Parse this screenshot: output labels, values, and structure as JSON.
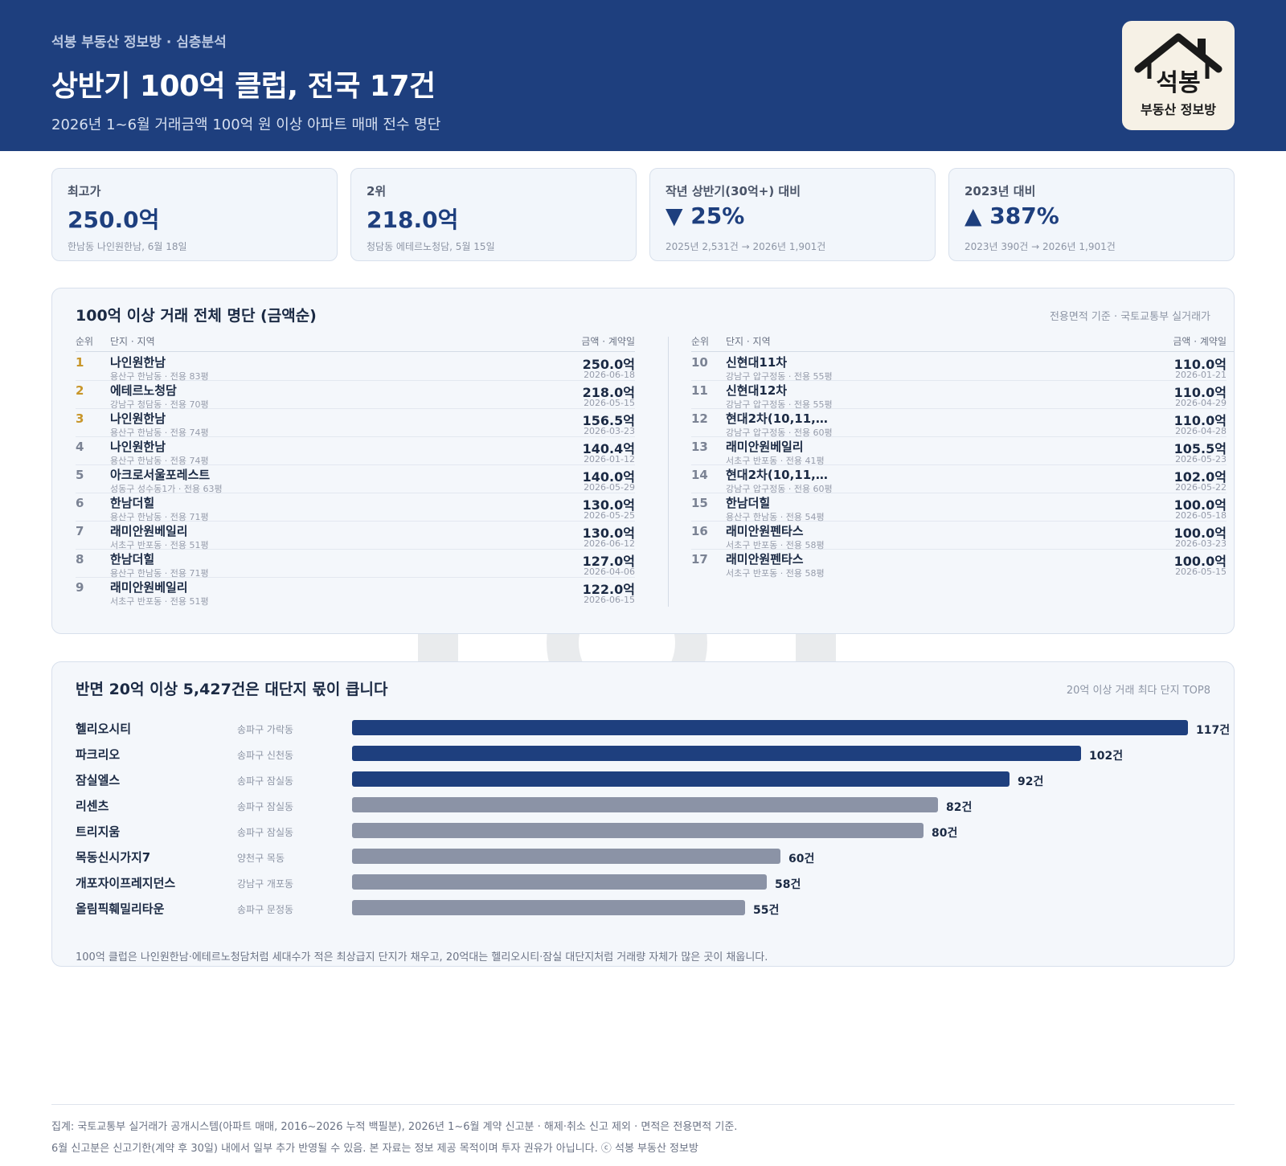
{
  "header": {
    "kicker": "석봉 부동산 정보방 · 심층분석",
    "title": "상반기 100억 클럽, 전국 17건",
    "subtitle": "2026년 1~6월 거래금액 100억 원 이상 아파트 매매 전수 명단",
    "logo_main": "석봉",
    "logo_sub": "부동산 정보방"
  },
  "kpis": [
    {
      "label": "최고가",
      "value": "250.0억",
      "note": "한남동 나인원한남, 6월 18일"
    },
    {
      "label": "2위",
      "value": "218.0억",
      "note": "청담동 에테르노청담, 5월 15일"
    },
    {
      "label": "작년 상반기(30억+) 대비",
      "value": "▼ 25%",
      "note": "2025년 2,531건 → 2026년 1,901건"
    },
    {
      "label": "2023년 대비",
      "value": "▲ 387%",
      "note": "2023년 390건 → 2026년 1,901건"
    }
  ],
  "ranking": {
    "title": "100억 이상 거래 전체 명단 (금액순)",
    "meta": "전용면적 기준 · 국토교통부 실거래가",
    "headers": {
      "rank": "순위",
      "complex": "단지 · 지역",
      "price": "금액 · 계약일"
    },
    "rows": [
      {
        "rank": "1",
        "name": "나인원한남",
        "loc": "용산구 한남동 · 전용 83평",
        "price": "250.0억",
        "date": "2026-06-18"
      },
      {
        "rank": "2",
        "name": "에테르노청담",
        "loc": "강남구 청담동 · 전용 70평",
        "price": "218.0억",
        "date": "2026-05-15"
      },
      {
        "rank": "3",
        "name": "나인원한남",
        "loc": "용산구 한남동 · 전용 74평",
        "price": "156.5억",
        "date": "2026-03-23"
      },
      {
        "rank": "4",
        "name": "나인원한남",
        "loc": "용산구 한남동 · 전용 74평",
        "price": "140.4억",
        "date": "2026-01-12"
      },
      {
        "rank": "5",
        "name": "아크로서울포레스트",
        "loc": "성동구 성수동1가 · 전용 63평",
        "price": "140.0억",
        "date": "2026-05-29"
      },
      {
        "rank": "6",
        "name": "한남더힐",
        "loc": "용산구 한남동 · 전용 71평",
        "price": "130.0억",
        "date": "2026-05-25"
      },
      {
        "rank": "7",
        "name": "래미안원베일리",
        "loc": "서초구 반포동 · 전용 51평",
        "price": "130.0억",
        "date": "2026-06-12"
      },
      {
        "rank": "8",
        "name": "한남더힐",
        "loc": "용산구 한남동 · 전용 71평",
        "price": "127.0억",
        "date": "2026-04-06"
      },
      {
        "rank": "9",
        "name": "래미안원베일리",
        "loc": "서초구 반포동 · 전용 51평",
        "price": "122.0억",
        "date": "2026-06-15"
      },
      {
        "rank": "10",
        "name": "신현대11차",
        "loc": "강남구 압구정동 · 전용 55평",
        "price": "110.0억",
        "date": "2026-01-21"
      },
      {
        "rank": "11",
        "name": "신현대12차",
        "loc": "강남구 압구정동 · 전용 55평",
        "price": "110.0억",
        "date": "2026-04-29"
      },
      {
        "rank": "12",
        "name": "현대2차(10,11,…",
        "loc": "강남구 압구정동 · 전용 60평",
        "price": "110.0억",
        "date": "2026-04-28"
      },
      {
        "rank": "13",
        "name": "래미안원베일리",
        "loc": "서초구 반포동 · 전용 41평",
        "price": "105.5억",
        "date": "2026-05-23"
      },
      {
        "rank": "14",
        "name": "현대2차(10,11,…",
        "loc": "강남구 압구정동 · 전용 60평",
        "price": "102.0억",
        "date": "2026-05-22"
      },
      {
        "rank": "15",
        "name": "한남더힐",
        "loc": "용산구 한남동 · 전용 54평",
        "price": "100.0억",
        "date": "2026-05-18"
      },
      {
        "rank": "16",
        "name": "래미안원펜타스",
        "loc": "서초구 반포동 · 전용 58평",
        "price": "100.0억",
        "date": "2026-03-23"
      },
      {
        "rank": "17",
        "name": "래미안원펜타스",
        "loc": "서초구 반포동 · 전용 58평",
        "price": "100.0억",
        "date": "2026-05-15"
      }
    ]
  },
  "chart_data": {
    "type": "bar",
    "orientation": "horizontal",
    "title": "반면 20억 이상 5,427건은 대단지 몫이 큽니다",
    "subtitle": "20억 이상 거래 최다 단지 TOP8",
    "categories": [
      "헬리오시티",
      "파크리오",
      "잠실엘스",
      "리센츠",
      "트리지움",
      "목동신시가지7",
      "개포자이프레지던스",
      "올림픽훼밀리타운"
    ],
    "areas": [
      "송파구 가락동",
      "송파구 신천동",
      "송파구 잠실동",
      "송파구 잠실동",
      "송파구 잠실동",
      "양천구 목동",
      "강남구 개포동",
      "송파구 문정동"
    ],
    "values": [
      117,
      102,
      92,
      82,
      80,
      60,
      58,
      55
    ],
    "value_labels": [
      "117건",
      "102건",
      "92건",
      "82건",
      "80건",
      "60건",
      "58건",
      "55건"
    ],
    "highlight_count": 3,
    "colors": {
      "highlight": "#1e3f7e",
      "other": "#8b93a6"
    },
    "xlim": [
      0,
      117
    ],
    "grid": false,
    "note": "100억 클럽은 나인원한남·에테르노청담처럼 세대수가 적은 최상급지 단지가 채우고, 20억대는 헬리오시티·잠실 대단지처럼 거래량 자체가 많은 곳이 채웁니다."
  },
  "footer": {
    "line1": "집계: 국토교통부 실거래가 공개시스템(아파트 매매, 2016~2026 누적 백필분), 2026년 1~6월 계약 신고분 · 해제·취소 신고 제외 · 면적은 전용면적 기준.",
    "line2": "6월 신고분은 신고기한(계약 후 30일) 내에서 일부 추가 반영될 수 있음. 본 자료는 정보 제공 목적이며 투자 권유가 아닙니다. ⓒ 석봉 부동산 정보방"
  }
}
